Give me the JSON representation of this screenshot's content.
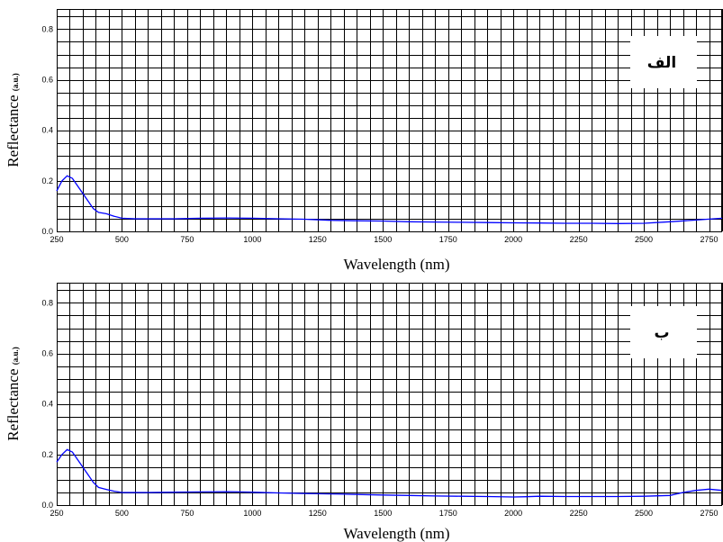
{
  "chart_data": [
    {
      "type": "line",
      "panel_label": "الف",
      "xlabel": "Wavelength (nm)",
      "ylabel": "Reflectance",
      "ylabel_unit": "(a.u.)",
      "xlim": [
        250,
        2800
      ],
      "ylim": [
        0.0,
        0.88
      ],
      "x_ticks": [
        250,
        500,
        750,
        1000,
        1250,
        1500,
        1750,
        2000,
        2250,
        2500,
        2750
      ],
      "x_tick_labels": [
        "250",
        "500",
        "750",
        "1000",
        "1250",
        "1500",
        "1750",
        "2000",
        "2250",
        "2500",
        "2750"
      ],
      "y_ticks": [
        0.0,
        0.2,
        0.4,
        0.6,
        0.8
      ],
      "y_tick_labels": [
        "0.0",
        "0.2",
        "0.4",
        "0.6",
        "0.8"
      ],
      "grid": true,
      "series": [
        {
          "color": "#0000ff",
          "x": [
            250,
            270,
            290,
            310,
            330,
            350,
            370,
            390,
            410,
            440,
            470,
            500,
            550,
            600,
            700,
            800,
            900,
            1000,
            1100,
            1200,
            1300,
            1400,
            1500,
            1600,
            1700,
            1800,
            1900,
            2000,
            2100,
            2200,
            2300,
            2400,
            2500,
            2600,
            2700,
            2800
          ],
          "y": [
            0.16,
            0.2,
            0.22,
            0.21,
            0.18,
            0.15,
            0.12,
            0.09,
            0.075,
            0.07,
            0.06,
            0.052,
            0.05,
            0.05,
            0.05,
            0.052,
            0.053,
            0.052,
            0.05,
            0.048,
            0.044,
            0.042,
            0.041,
            0.038,
            0.037,
            0.036,
            0.035,
            0.034,
            0.033,
            0.032,
            0.032,
            0.031,
            0.032,
            0.038,
            0.045,
            0.052
          ]
        }
      ]
    },
    {
      "type": "line",
      "panel_label": "ب",
      "xlabel": "Wavelength (nm)",
      "ylabel": "Reflectance",
      "ylabel_unit": "(a.u.)",
      "xlim": [
        250,
        2800
      ],
      "ylim": [
        0.0,
        0.88
      ],
      "x_ticks": [
        250,
        500,
        750,
        1000,
        1250,
        1500,
        1750,
        2000,
        2250,
        2500,
        2750
      ],
      "x_tick_labels": [
        "250",
        "500",
        "750",
        "1000",
        "1250",
        "1500",
        "1750",
        "2000",
        "2250",
        "2500",
        "2750"
      ],
      "y_ticks": [
        0.0,
        0.2,
        0.4,
        0.6,
        0.8
      ],
      "y_tick_labels": [
        "0.0",
        "0.2",
        "0.4",
        "0.6",
        "0.8"
      ],
      "grid": true,
      "series": [
        {
          "color": "#0000ff",
          "x": [
            250,
            270,
            290,
            310,
            330,
            350,
            370,
            390,
            410,
            440,
            470,
            500,
            550,
            600,
            700,
            800,
            900,
            1000,
            1100,
            1200,
            1300,
            1400,
            1500,
            1600,
            1700,
            1800,
            1900,
            2000,
            2050,
            2100,
            2200,
            2300,
            2400,
            2500,
            2600,
            2650,
            2700,
            2750,
            2800
          ],
          "y": [
            0.17,
            0.2,
            0.22,
            0.21,
            0.18,
            0.15,
            0.12,
            0.09,
            0.07,
            0.062,
            0.055,
            0.05,
            0.05,
            0.05,
            0.051,
            0.052,
            0.053,
            0.051,
            0.048,
            0.046,
            0.044,
            0.042,
            0.04,
            0.038,
            0.036,
            0.035,
            0.034,
            0.032,
            0.033,
            0.035,
            0.034,
            0.034,
            0.034,
            0.035,
            0.038,
            0.05,
            0.058,
            0.063,
            0.058
          ]
        }
      ]
    }
  ]
}
